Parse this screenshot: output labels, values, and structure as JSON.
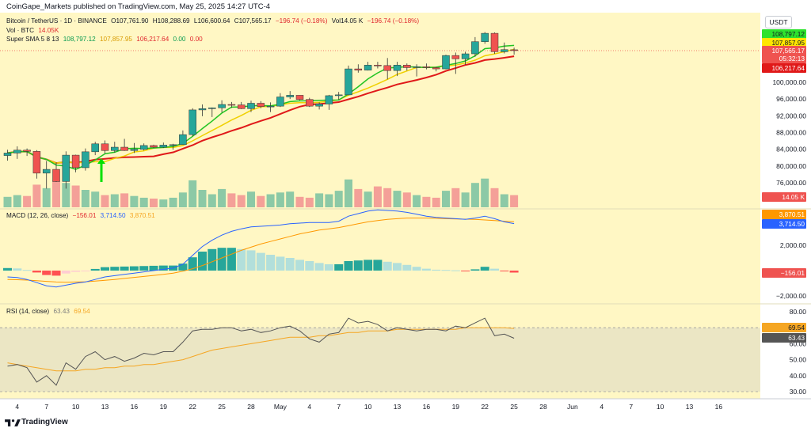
{
  "header": {
    "published": "CoinGape_Markets published on TradingView.com, May 25, 2025 14:27 UTC-4"
  },
  "legend": {
    "symbol": "Bitcoin / TetherUS · 1D · BINANCE",
    "o": "O107,761.90",
    "h": "H108,288.69",
    "l": "L106,600.64",
    "c": "C107,565.17",
    "chg": "−196.74 (−0.18%)",
    "vol": "Vol14.05 K",
    "chg2": "−196.74 (−0.18%)",
    "vol_label": "Vol · BTC",
    "vol_value": "14.05K",
    "sma_label": "Super SMA 5 8 13",
    "sma_v1": "108,797.12",
    "sma_v2": "107,857.95",
    "sma_v3": "106,217.64",
    "sma_v4": "0.00",
    "sma_v5": "0.00",
    "macd_label": "MACD (12, 26, close)",
    "macd_v1": "−156.01",
    "macd_v2": "3,714.50",
    "macd_v3": "3,870.51",
    "rsi_label": "RSI (14, close)",
    "rsi_v1": "63.43",
    "rsi_v2": "69.54"
  },
  "axis": {
    "currency": "USDT"
  },
  "badges": {
    "sma5": "108,797.12",
    "sma8": "107,857.95",
    "price": "107,565.17",
    "countdown": "05:32:13",
    "sma13": "106,217.64",
    "vol": "14.05 K",
    "macd_signal": "3,870.51",
    "macd_line": "3,714.50",
    "macd_hist": "−156.01",
    "rsi_ma": "69.54",
    "rsi": "63.43"
  },
  "footer": {
    "brand": "TradingView"
  },
  "colors": {
    "up": "#26a69a",
    "down": "#ef5350",
    "sma5": "#22c422",
    "sma8": "#f0d000",
    "sma13": "#e01919",
    "macd": "#2962ff",
    "signal": "#ff9800",
    "rsi": "#555555",
    "rsima": "#f5a623"
  },
  "chart_data": {
    "type": "candlestick",
    "x_ticks": [
      "4",
      "7",
      "10",
      "13",
      "16",
      "19",
      "22",
      "25",
      "28",
      "May",
      "4",
      "7",
      "10",
      "13",
      "16",
      "19",
      "22",
      "25",
      "28",
      "Jun",
      "4",
      "7",
      "10",
      "13",
      "16"
    ],
    "price_axis_ticks": [
      "100,000.00",
      "96,000.00",
      "92,000.00",
      "88,000.00",
      "84,000.00",
      "80,000.00",
      "76,000.00"
    ],
    "macd_axis_ticks": [
      "2,000.00",
      "−2,000.00"
    ],
    "rsi_axis_ticks": [
      "80.00",
      "70.00",
      "60.00",
      "50.00",
      "40.00",
      "30.00"
    ],
    "candles": [
      {
        "date": "Apr 3",
        "o": 82500,
        "h": 83900,
        "l": 81300,
        "c": 83100
      },
      {
        "date": "Apr 4",
        "o": 83100,
        "h": 84700,
        "l": 81700,
        "c": 83800
      },
      {
        "date": "Apr 5",
        "o": 83800,
        "h": 84200,
        "l": 82400,
        "c": 83500
      },
      {
        "date": "Apr 6",
        "o": 83500,
        "h": 83800,
        "l": 77000,
        "c": 78300
      },
      {
        "date": "Apr 7",
        "o": 78300,
        "h": 81200,
        "l": 74600,
        "c": 79200
      },
      {
        "date": "Apr 8",
        "o": 79200,
        "h": 80900,
        "l": 76200,
        "c": 76300
      },
      {
        "date": "Apr 9",
        "o": 76300,
        "h": 83500,
        "l": 74600,
        "c": 82600
      },
      {
        "date": "Apr 10",
        "o": 82600,
        "h": 82700,
        "l": 78500,
        "c": 79600
      },
      {
        "date": "Apr 11",
        "o": 79600,
        "h": 84200,
        "l": 78900,
        "c": 83400
      },
      {
        "date": "Apr 12",
        "o": 83400,
        "h": 85800,
        "l": 82600,
        "c": 85300
      },
      {
        "date": "Apr 13",
        "o": 85300,
        "h": 86100,
        "l": 83000,
        "c": 83700
      },
      {
        "date": "Apr 14",
        "o": 83700,
        "h": 85800,
        "l": 83200,
        "c": 84500
      },
      {
        "date": "Apr 15",
        "o": 84500,
        "h": 86500,
        "l": 83600,
        "c": 83700
      },
      {
        "date": "Apr 16",
        "o": 83700,
        "h": 85500,
        "l": 83100,
        "c": 84000
      },
      {
        "date": "Apr 17",
        "o": 84000,
        "h": 85400,
        "l": 83700,
        "c": 84900
      },
      {
        "date": "Apr 18",
        "o": 84900,
        "h": 85100,
        "l": 84300,
        "c": 84500
      },
      {
        "date": "Apr 19",
        "o": 84500,
        "h": 85600,
        "l": 84300,
        "c": 85000
      },
      {
        "date": "Apr 20",
        "o": 85000,
        "h": 85300,
        "l": 83900,
        "c": 85100
      },
      {
        "date": "Apr 21",
        "o": 85100,
        "h": 88500,
        "l": 85100,
        "c": 87500
      },
      {
        "date": "Apr 22",
        "o": 87500,
        "h": 93800,
        "l": 87100,
        "c": 93400
      },
      {
        "date": "Apr 23",
        "o": 93400,
        "h": 94700,
        "l": 91900,
        "c": 93700
      },
      {
        "date": "Apr 24",
        "o": 93700,
        "h": 94000,
        "l": 91700,
        "c": 93900
      },
      {
        "date": "Apr 25",
        "o": 93900,
        "h": 95700,
        "l": 92800,
        "c": 94700
      },
      {
        "date": "Apr 26",
        "o": 94700,
        "h": 95300,
        "l": 93900,
        "c": 94600
      },
      {
        "date": "Apr 27",
        "o": 94600,
        "h": 95300,
        "l": 93600,
        "c": 93700
      },
      {
        "date": "Apr 28",
        "o": 93700,
        "h": 95600,
        "l": 92900,
        "c": 95000
      },
      {
        "date": "Apr 29",
        "o": 95000,
        "h": 95500,
        "l": 93800,
        "c": 94200
      },
      {
        "date": "Apr 30",
        "o": 94200,
        "h": 95200,
        "l": 92900,
        "c": 94300
      },
      {
        "date": "May 1",
        "o": 94300,
        "h": 97400,
        "l": 94100,
        "c": 96500
      },
      {
        "date": "May 2",
        "o": 96500,
        "h": 97900,
        "l": 96000,
        "c": 96900
      },
      {
        "date": "May 3",
        "o": 96900,
        "h": 96900,
        "l": 95700,
        "c": 95900
      },
      {
        "date": "May 4",
        "o": 95900,
        "h": 96300,
        "l": 94100,
        "c": 94300
      },
      {
        "date": "May 5",
        "o": 94300,
        "h": 95200,
        "l": 93500,
        "c": 94800
      },
      {
        "date": "May 6",
        "o": 94800,
        "h": 97000,
        "l": 93400,
        "c": 96800
      },
      {
        "date": "May 7",
        "o": 96800,
        "h": 97700,
        "l": 95800,
        "c": 97000
      },
      {
        "date": "May 8",
        "o": 97000,
        "h": 104000,
        "l": 96900,
        "c": 103200
      },
      {
        "date": "May 9",
        "o": 103200,
        "h": 104300,
        "l": 102300,
        "c": 102900
      },
      {
        "date": "May 10",
        "o": 102900,
        "h": 104900,
        "l": 102800,
        "c": 104100
      },
      {
        "date": "May 11",
        "o": 104100,
        "h": 104900,
        "l": 103300,
        "c": 104000
      },
      {
        "date": "May 12",
        "o": 104000,
        "h": 105800,
        "l": 100700,
        "c": 102800
      },
      {
        "date": "May 13",
        "o": 102800,
        "h": 104900,
        "l": 101500,
        "c": 104100
      },
      {
        "date": "May 14",
        "o": 104100,
        "h": 104500,
        "l": 102800,
        "c": 103500
      },
      {
        "date": "May 15",
        "o": 103500,
        "h": 104300,
        "l": 101400,
        "c": 103700
      },
      {
        "date": "May 16",
        "o": 103700,
        "h": 104500,
        "l": 103100,
        "c": 103500
      },
      {
        "date": "May 17",
        "o": 103500,
        "h": 103700,
        "l": 102600,
        "c": 103200
      },
      {
        "date": "May 18",
        "o": 103200,
        "h": 106600,
        "l": 103100,
        "c": 106400
      },
      {
        "date": "May 19",
        "o": 106400,
        "h": 107100,
        "l": 102000,
        "c": 105600
      },
      {
        "date": "May 20",
        "o": 105600,
        "h": 107300,
        "l": 104200,
        "c": 106800
      },
      {
        "date": "May 21",
        "o": 106800,
        "h": 110800,
        "l": 106100,
        "c": 109700
      },
      {
        "date": "May 22",
        "o": 109700,
        "h": 112000,
        "l": 109200,
        "c": 111700
      },
      {
        "date": "May 23",
        "o": 111700,
        "h": 111900,
        "l": 106800,
        "c": 107300
      },
      {
        "date": "May 24",
        "o": 107300,
        "h": 109500,
        "l": 106900,
        "c": 107800
      },
      {
        "date": "May 25",
        "o": 107762,
        "h": 108289,
        "l": 106601,
        "c": 107565
      }
    ],
    "volume": [
      12,
      14,
      13,
      26,
      22,
      31,
      28,
      25,
      20,
      18,
      14,
      15,
      16,
      13,
      11,
      10,
      9,
      11,
      17,
      31,
      20,
      15,
      21,
      16,
      14,
      18,
      13,
      15,
      17,
      18,
      12,
      11,
      16,
      15,
      19,
      32,
      21,
      18,
      24,
      22,
      19,
      17,
      14,
      12,
      11,
      19,
      22,
      17,
      28,
      33,
      22,
      15,
      14
    ],
    "macd": [
      -500,
      -550,
      -700,
      -950,
      -1200,
      -1300,
      -1150,
      -1000,
      -900,
      -700,
      -500,
      -400,
      -300,
      -200,
      -100,
      0,
      100,
      200,
      500,
      1200,
      1900,
      2400,
      2800,
      3100,
      3300,
      3450,
      3500,
      3550,
      3600,
      3700,
      3750,
      3800,
      3800,
      3800,
      3900,
      4300,
      4500,
      4700,
      4800,
      4750,
      4700,
      4600,
      4450,
      4300,
      4200,
      4150,
      4100,
      4050,
      4150,
      4300,
      4100,
      3850,
      3714
    ],
    "signal": [
      -700,
      -720,
      -750,
      -800,
      -850,
      -900,
      -920,
      -900,
      -880,
      -830,
      -770,
      -700,
      -620,
      -540,
      -460,
      -380,
      -300,
      -200,
      -50,
      150,
      400,
      700,
      1000,
      1300,
      1600,
      1850,
      2100,
      2300,
      2500,
      2700,
      2900,
      3050,
      3200,
      3300,
      3400,
      3550,
      3700,
      3850,
      3950,
      4050,
      4100,
      4150,
      4150,
      4150,
      4130,
      4100,
      4080,
      4060,
      4050,
      4000,
      3950,
      3900,
      3870
    ],
    "histogram": [
      200,
      170,
      50,
      -150,
      -350,
      -400,
      -230,
      -100,
      -20,
      130,
      270,
      300,
      320,
      340,
      360,
      380,
      400,
      400,
      550,
      1050,
      1500,
      1700,
      1800,
      1800,
      1700,
      1600,
      1400,
      1250,
      1100,
      1000,
      850,
      750,
      600,
      500,
      500,
      750,
      800,
      850,
      850,
      700,
      600,
      450,
      300,
      150,
      70,
      50,
      20,
      -10,
      100,
      300,
      150,
      -50,
      -156
    ],
    "rsi": [
      46,
      47,
      45,
      36,
      40,
      34,
      48,
      44,
      52,
      55,
      50,
      52,
      49,
      51,
      54,
      53,
      55,
      55,
      61,
      68,
      69,
      69,
      70,
      70,
      68,
      69,
      67,
      68,
      70,
      71,
      68,
      63,
      61,
      66,
      67,
      76,
      73,
      74,
      72,
      68,
      70,
      69,
      68,
      69,
      69,
      68,
      71,
      70,
      73,
      76,
      65,
      66,
      63.43
    ],
    "rsi_ma": [
      48,
      47,
      46,
      45,
      44,
      43,
      43,
      43,
      44,
      44,
      45,
      45,
      46,
      46,
      47,
      47,
      48,
      49,
      50,
      52,
      54,
      56,
      57,
      58,
      59,
      60,
      61,
      62,
      63,
      64,
      64,
      64,
      65,
      65,
      66,
      67,
      67,
      68,
      68,
      68,
      69,
      69,
      69,
      69,
      69,
      69,
      69,
      70,
      70,
      70,
      70,
      70,
      69.54
    ],
    "sma5_last": 108797.12,
    "sma8_last": 107857.95,
    "sma13_last": 106217.64,
    "last_close": 107565.17
  }
}
